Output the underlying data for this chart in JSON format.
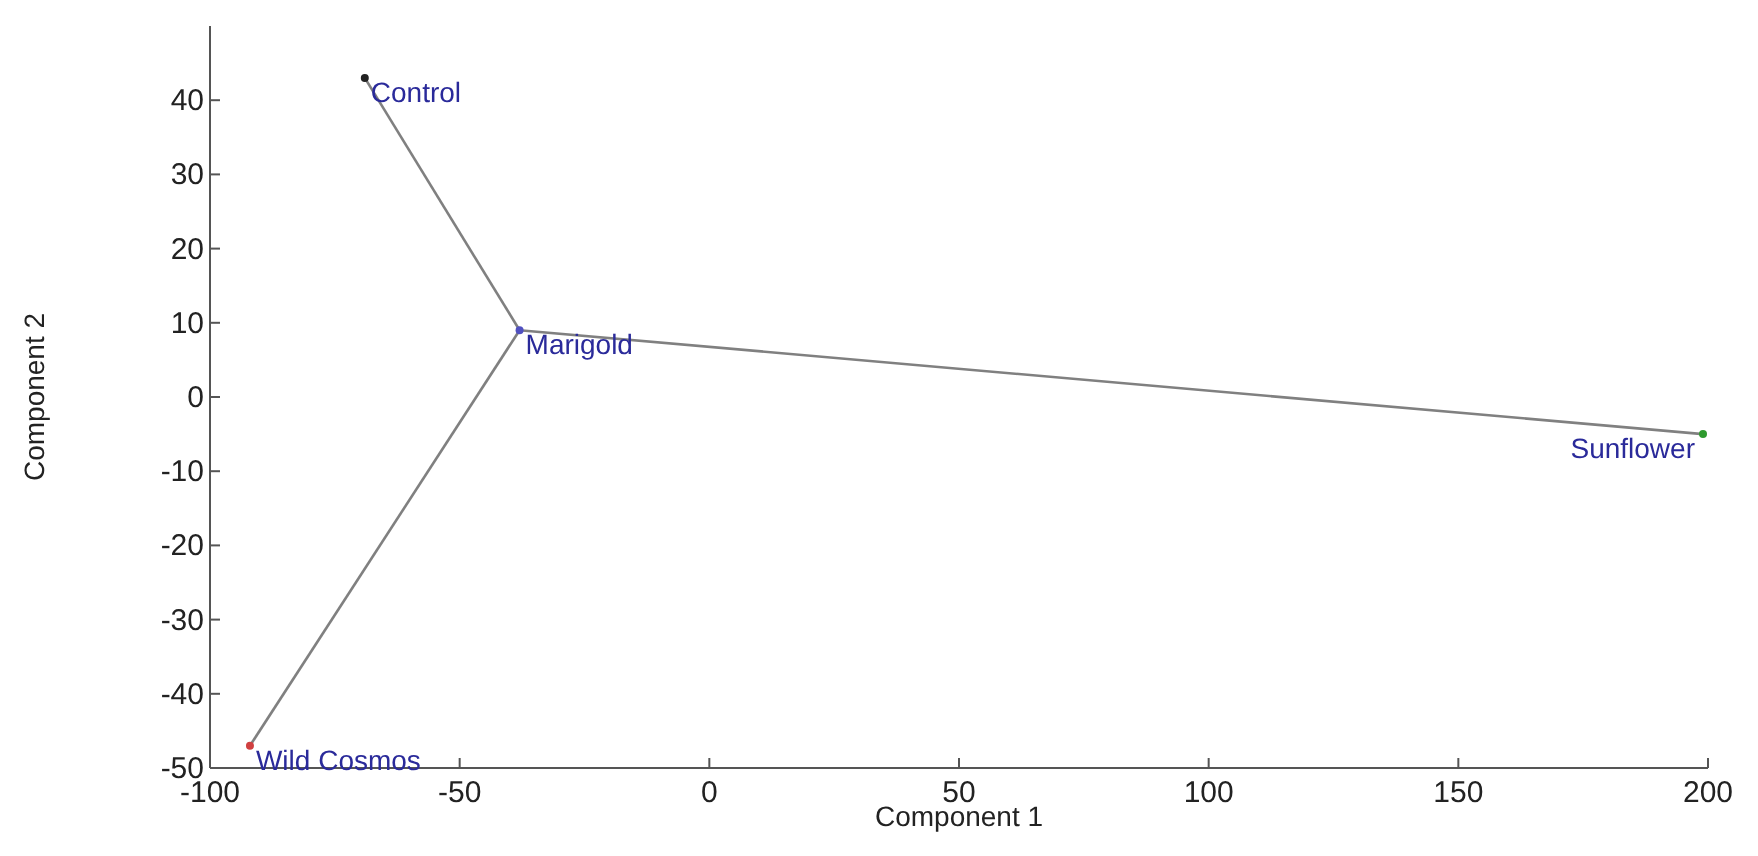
{
  "chart_data": {
    "type": "scatter",
    "xlabel": "Component 1",
    "ylabel": "Component 2",
    "xlim": [
      -100,
      200
    ],
    "xticks": [
      -100,
      -50,
      0,
      50,
      100,
      150,
      200
    ],
    "ylim": [
      -50,
      50
    ],
    "yticks": [
      -50,
      -40,
      -30,
      -20,
      -10,
      0,
      10,
      20,
      30,
      40
    ],
    "grid": false,
    "marker": "circle",
    "series": [
      {
        "type": "line",
        "marker": "none",
        "x": [
          -69,
          -38
        ],
        "values": [
          43,
          9
        ],
        "color": "#808080"
      },
      {
        "type": "line",
        "marker": "none",
        "x": [
          -38,
          199
        ],
        "values": [
          9,
          -5
        ],
        "color": "#808080"
      },
      {
        "type": "line",
        "marker": "none",
        "x": [
          -38,
          -92
        ],
        "values": [
          9,
          -47
        ],
        "color": "#808080"
      },
      {
        "name": "Control",
        "x": [
          -69
        ],
        "values": [
          43
        ],
        "color": "#222222"
      },
      {
        "name": "Marigold",
        "x": [
          -38
        ],
        "values": [
          9
        ],
        "color": "#5050c0"
      },
      {
        "name": "Sunflower",
        "x": [
          199
        ],
        "values": [
          -5
        ],
        "color": "#2e9a2e"
      },
      {
        "name": "Wild Cosmos",
        "x": [
          -92
        ],
        "values": [
          -47
        ],
        "color": "#d04040"
      }
    ]
  }
}
